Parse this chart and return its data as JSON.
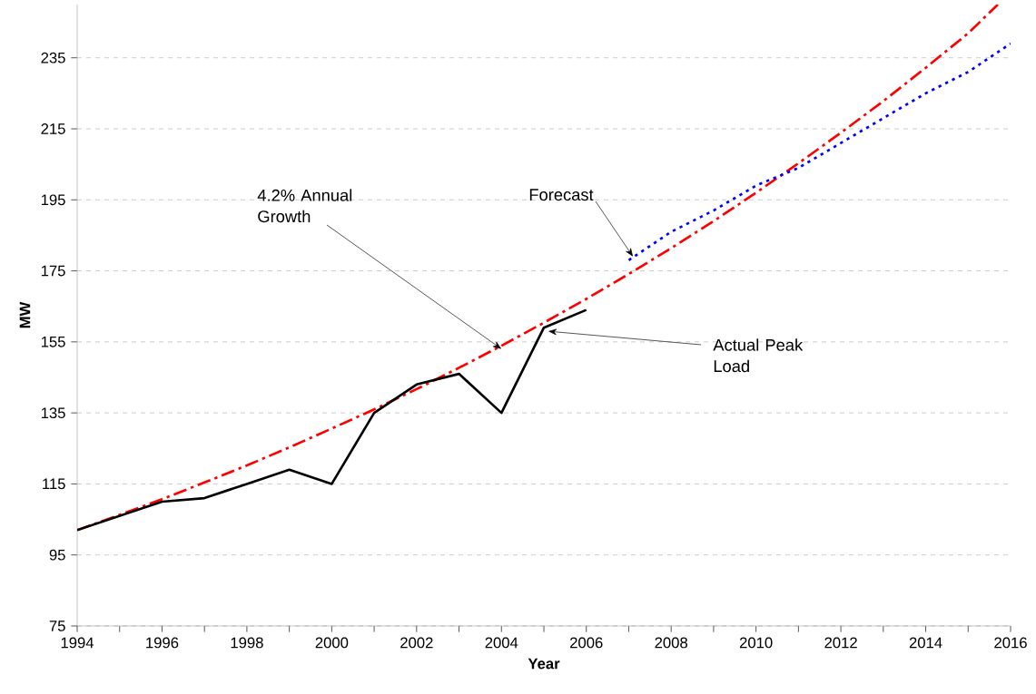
{
  "chart_data": {
    "type": "line",
    "xlabel": "Year",
    "ylabel": "MW",
    "xlim": [
      1994,
      2016
    ],
    "ylim": [
      75,
      250
    ],
    "xticks": [
      1994,
      {
        "value": 1995,
        "label": null
      },
      1996,
      {
        "value": 1997,
        "label": null
      },
      1998,
      {
        "value": 1999,
        "label": null
      },
      2000,
      {
        "value": 2001,
        "label": null
      },
      2002,
      {
        "value": 2003,
        "label": null
      },
      2004,
      {
        "value": 2005,
        "label": null
      },
      2006,
      {
        "value": 2007,
        "label": null
      },
      2008,
      {
        "value": 2009,
        "label": null
      },
      2010,
      {
        "value": 2011,
        "label": null
      },
      2012,
      {
        "value": 2013,
        "label": null
      },
      2014,
      {
        "value": 2015,
        "label": null
      },
      2016
    ],
    "yticks": [
      75,
      95,
      115,
      135,
      155,
      175,
      195,
      215,
      235
    ],
    "grid": "y",
    "marker": "none",
    "series": [
      {
        "color": "#ff0000",
        "line_style": "dashdot",
        "x": [
          1994,
          1995,
          1996,
          1997,
          1998,
          1999,
          2000,
          2001,
          2002,
          2003,
          2004,
          2005,
          2006,
          2007,
          2008,
          2009,
          2010,
          2011,
          2012,
          2013,
          2014,
          2015,
          2015.7
        ],
        "values": [
          102.0,
          106.3,
          110.7,
          115.4,
          120.2,
          125.3,
          130.6,
          136.0,
          141.7,
          147.7,
          153.9,
          160.4,
          167.1,
          174.1,
          181.4,
          189.0,
          197.0,
          205.3,
          213.9,
          222.8,
          232.2,
          241.9,
          250
        ]
      },
      {
        "color": "#0000ff",
        "line_style": "dotted",
        "x": [
          2007,
          2008,
          2009,
          2010,
          2011,
          2012,
          2013,
          2014,
          2015,
          2016
        ],
        "values": [
          178,
          186,
          192,
          199,
          204,
          211,
          218,
          225,
          231,
          239
        ]
      },
      {
        "color": "#000000",
        "line_style": "solid",
        "x": [
          1994,
          1995,
          1996,
          1997,
          1998,
          1999,
          2000,
          2001,
          2002,
          2003,
          2004,
          2005,
          2006
        ],
        "values": [
          102,
          106,
          110,
          111,
          115,
          119,
          115,
          135,
          143,
          146,
          135,
          159,
          164
        ]
      }
    ],
    "annotations": [
      {
        "text": "4.2% Annual Growth",
        "x": 2004,
        "y": 153
      },
      {
        "text": "Forecast",
        "x": 2007.1,
        "y": 179
      },
      {
        "text": "Actual Peak Load",
        "x": 2005.1,
        "y": 158
      }
    ]
  }
}
